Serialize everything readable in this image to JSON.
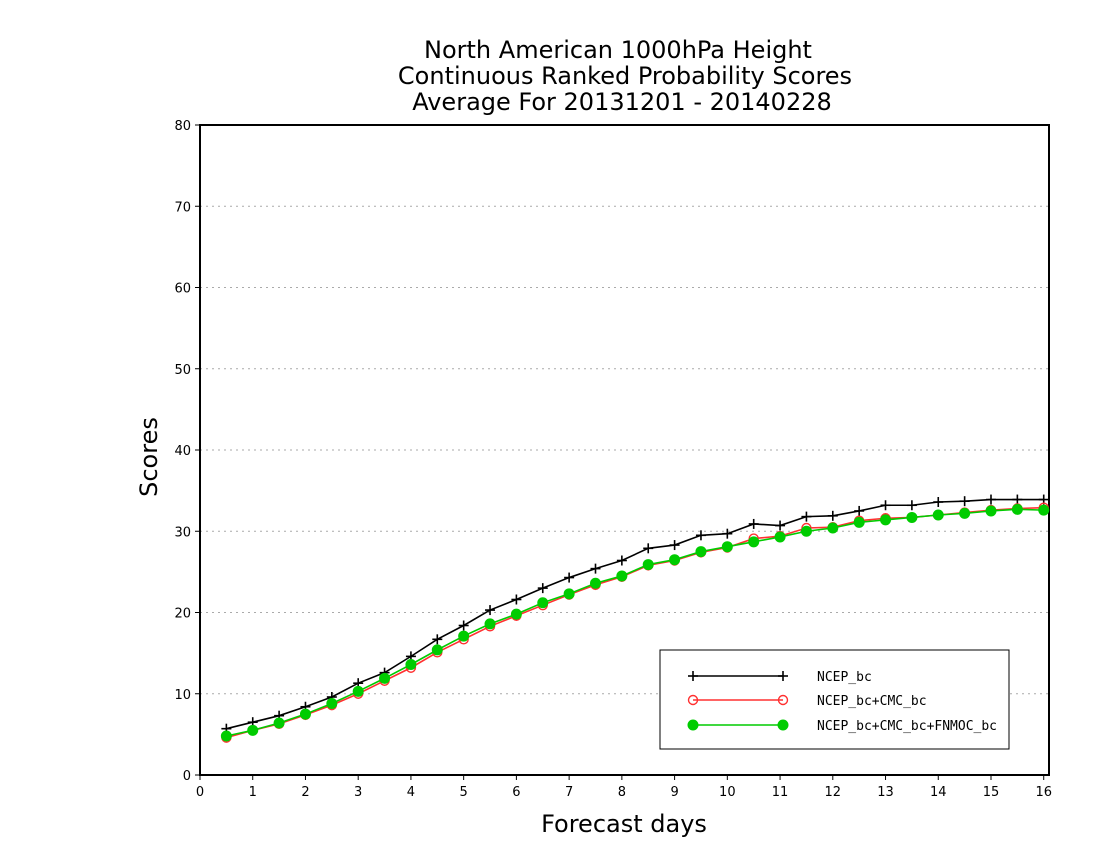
{
  "chart_data": {
    "type": "line",
    "title": [
      "North American 1000hPa Height",
      "Continuous Ranked Probability Scores",
      "Average For 20131201 - 20140228"
    ],
    "xlabel": "Forecast days",
    "ylabel": "Scores",
    "xlim": [
      0,
      16.1
    ],
    "ylim": [
      0,
      80
    ],
    "xticks": [
      0,
      1,
      2,
      3,
      4,
      5,
      6,
      7,
      8,
      9,
      10,
      11,
      12,
      13,
      14,
      15,
      16
    ],
    "yticks": [
      0,
      10,
      20,
      30,
      40,
      50,
      60,
      70,
      80
    ],
    "grid": "horizontal dotted",
    "legend_position": "lower-right",
    "x": [
      0.5,
      1.0,
      1.5,
      2.0,
      2.5,
      3.0,
      3.5,
      4.0,
      4.5,
      5.0,
      5.5,
      6.0,
      6.5,
      7.0,
      7.5,
      8.0,
      8.5,
      9.0,
      9.5,
      10.0,
      10.5,
      11.0,
      11.5,
      12.0,
      12.5,
      13.0,
      13.5,
      14.0,
      14.5,
      15.0,
      15.5,
      16.0
    ],
    "series": [
      {
        "name": "NCEP_bc",
        "color": "#000000",
        "marker": "plus",
        "values": [
          5.7,
          6.5,
          7.3,
          8.4,
          9.6,
          11.3,
          12.6,
          14.6,
          16.7,
          18.4,
          20.3,
          21.6,
          23.0,
          24.3,
          25.4,
          26.4,
          27.9,
          28.3,
          29.5,
          29.7,
          30.9,
          30.7,
          31.8,
          31.9,
          32.5,
          33.2,
          33.2,
          33.6,
          33.7,
          33.9,
          33.9,
          33.9
        ]
      },
      {
        "name": "NCEP_bc+CMC_bc",
        "color": "#ff3030",
        "marker": "open-circle",
        "values": [
          4.6,
          5.5,
          6.3,
          7.4,
          8.6,
          10.0,
          11.6,
          13.2,
          15.1,
          16.7,
          18.3,
          19.6,
          20.9,
          22.2,
          23.4,
          24.4,
          25.8,
          26.4,
          27.4,
          28.0,
          29.1,
          29.4,
          30.4,
          30.5,
          31.3,
          31.6,
          31.7,
          32.0,
          32.3,
          32.6,
          32.8,
          32.9
        ]
      },
      {
        "name": "NCEP_bc+CMC_bc+FNMOC_bc",
        "color": "#00cc00",
        "marker": "filled-circle",
        "values": [
          4.8,
          5.5,
          6.4,
          7.5,
          8.8,
          10.3,
          11.9,
          13.6,
          15.4,
          17.1,
          18.6,
          19.8,
          21.2,
          22.3,
          23.6,
          24.5,
          25.9,
          26.5,
          27.5,
          28.1,
          28.7,
          29.3,
          30.0,
          30.4,
          31.1,
          31.4,
          31.7,
          32.0,
          32.2,
          32.5,
          32.7,
          32.6
        ]
      }
    ]
  }
}
